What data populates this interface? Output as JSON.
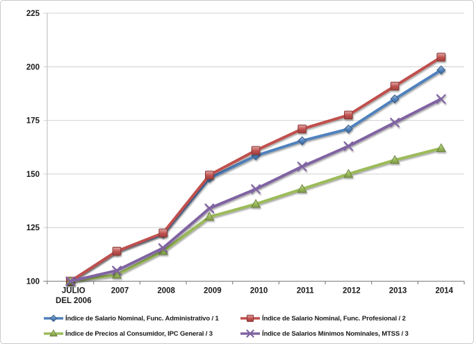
{
  "chart_data": {
    "type": "line",
    "title": "",
    "xlabel": "",
    "ylabel": "",
    "ylim": [
      100,
      225
    ],
    "ytick_step": 25,
    "ytick_labels": [
      "100",
      "125",
      "150",
      "175",
      "200",
      "225"
    ],
    "grid": true,
    "legend_position": "bottom",
    "gridline_color": "#d9d9d9",
    "y_axis_line_color": "#c6c6c6",
    "x_axis_line_color": "#8e8e8e",
    "text_color": "#1a1a1a",
    "background_color": "#ffffff",
    "categories": [
      "JULIO DEL 2006",
      "2007",
      "2008",
      "2009",
      "2010",
      "2011",
      "2012",
      "2013",
      "2014"
    ],
    "category_display_lines": [
      [
        "JULIO",
        "DEL 2006"
      ],
      [
        "2007"
      ],
      [
        "2008"
      ],
      [
        "2009"
      ],
      [
        "2010"
      ],
      [
        "2011"
      ],
      [
        "2012"
      ],
      [
        "2013"
      ],
      [
        "2014"
      ]
    ],
    "series": [
      {
        "name": "Índice de Salario Nominal, Func. Administrativo / 1",
        "marker": "diamond",
        "color": "#4f81bd",
        "values": [
          100,
          114,
          122,
          148,
          158.5,
          165.5,
          171,
          185,
          198.5
        ]
      },
      {
        "name": "Índice de Salario Nominal, Func. Profesional / 2",
        "marker": "square",
        "color": "#c0504d",
        "values": [
          100,
          114,
          122.5,
          149.5,
          161,
          171,
          177.5,
          191,
          204.5
        ]
      },
      {
        "name": "Índice de Precios al Consumidor, IPC General / 3",
        "marker": "triangle",
        "color": "#9bbb59",
        "values": [
          100,
          103,
          114,
          130,
          136,
          143,
          150,
          156.5,
          162
        ]
      },
      {
        "name": "Índice de Salarios Mínimos Nominales, MTSS / 3",
        "marker": "x",
        "color": "#8064a2",
        "values": [
          100,
          105,
          115.5,
          134,
          143,
          153.5,
          163,
          174,
          185
        ]
      }
    ]
  }
}
